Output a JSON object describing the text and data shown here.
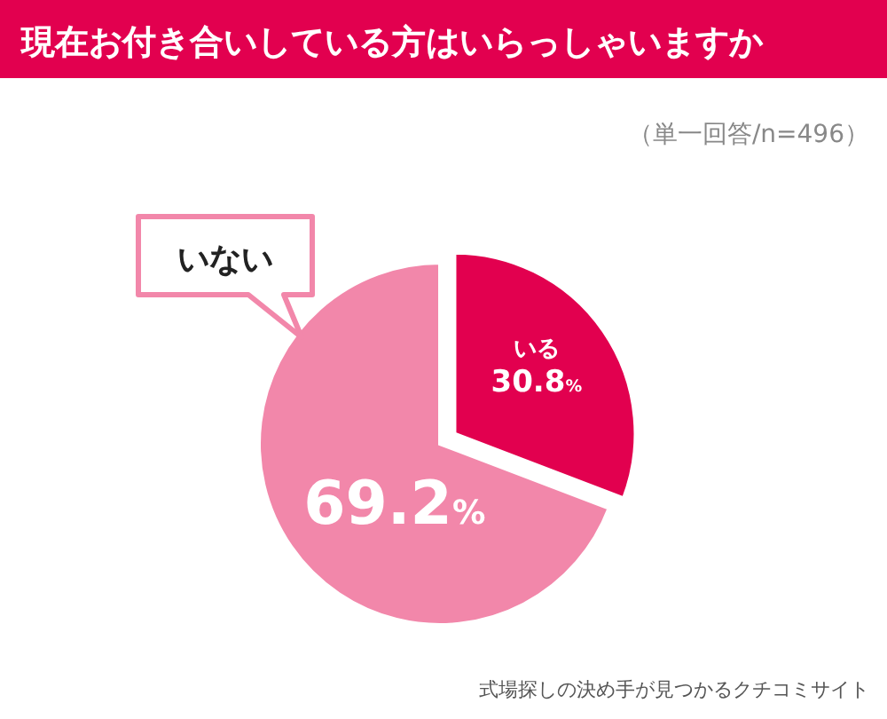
{
  "chart_data": {
    "type": "pie",
    "title": "現在お付き合いしている方はいらっしゃいますか",
    "subtitle": "（単一回答/n=496）",
    "categories": [
      "いる",
      "いない"
    ],
    "values": [
      30.8,
      69.2
    ],
    "colors": [
      "#e2004f",
      "#f287aa"
    ],
    "value_labels": [
      "30.8%",
      "69.2%"
    ],
    "annotations": [
      "式場探しの決め手が見つかるクチコミサイト"
    ]
  }
}
